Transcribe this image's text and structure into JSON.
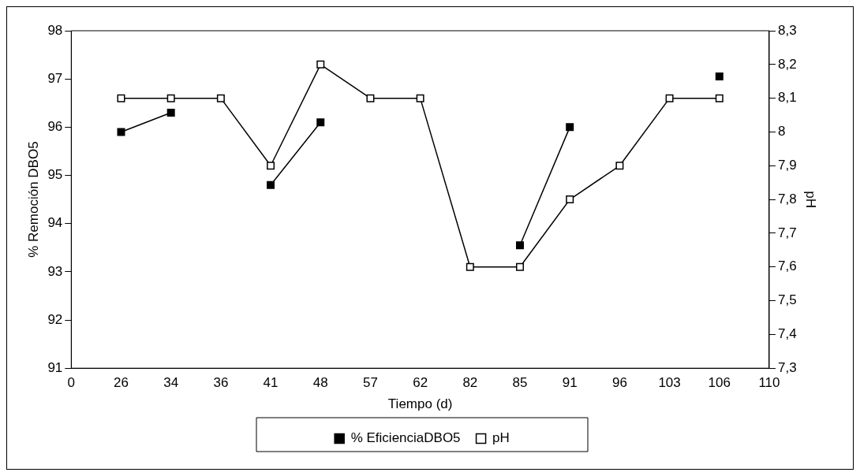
{
  "chart_data": {
    "type": "line",
    "xlabel": "Tiempo (d)",
    "ylabel": "% Remoción DBO5",
    "y2label": "pH",
    "categories": [
      "0",
      "26",
      "34",
      "36",
      "41",
      "48",
      "57",
      "62",
      "82",
      "85",
      "91",
      "96",
      "103",
      "106",
      "110"
    ],
    "series": [
      {
        "name": "% EficienciaDBO5",
        "color": "#000000",
        "values": [
          null,
          95.9,
          96.3,
          null,
          94.8,
          96.1,
          null,
          null,
          null,
          93.55,
          96.0,
          null,
          null,
          97.05,
          null
        ]
      },
      {
        "name": "pH",
        "color": "#000000",
        "axis": "y2",
        "values": [
          null,
          8.1,
          8.1,
          8.1,
          7.9,
          8.2,
          8.1,
          8.1,
          7.6,
          7.6,
          7.8,
          7.9,
          8.1,
          8.1,
          null
        ]
      }
    ],
    "ylim": [
      91,
      98
    ],
    "yticks": [
      91,
      92,
      93,
      94,
      95,
      96,
      97,
      98
    ],
    "y2lim": [
      7.3,
      8.3
    ],
    "y2ticks": [
      {
        "value": 7.3,
        "label": "7,3"
      },
      {
        "value": 7.4,
        "label": "7,4"
      },
      {
        "value": 7.5,
        "label": "7,5"
      },
      {
        "value": 7.6,
        "label": "7,6"
      },
      {
        "value": 7.7,
        "label": "7,7"
      },
      {
        "value": 7.8,
        "label": "7,8"
      },
      {
        "value": 7.9,
        "label": "7,9"
      },
      {
        "value": 8.0,
        "label": "8"
      },
      {
        "value": 8.1,
        "label": "8,1"
      },
      {
        "value": 8.2,
        "label": "8,2"
      },
      {
        "value": 8.3,
        "label": "8,3"
      }
    ],
    "grid": false,
    "legend": "bottom",
    "marker": "square",
    "line_style": "solid"
  }
}
